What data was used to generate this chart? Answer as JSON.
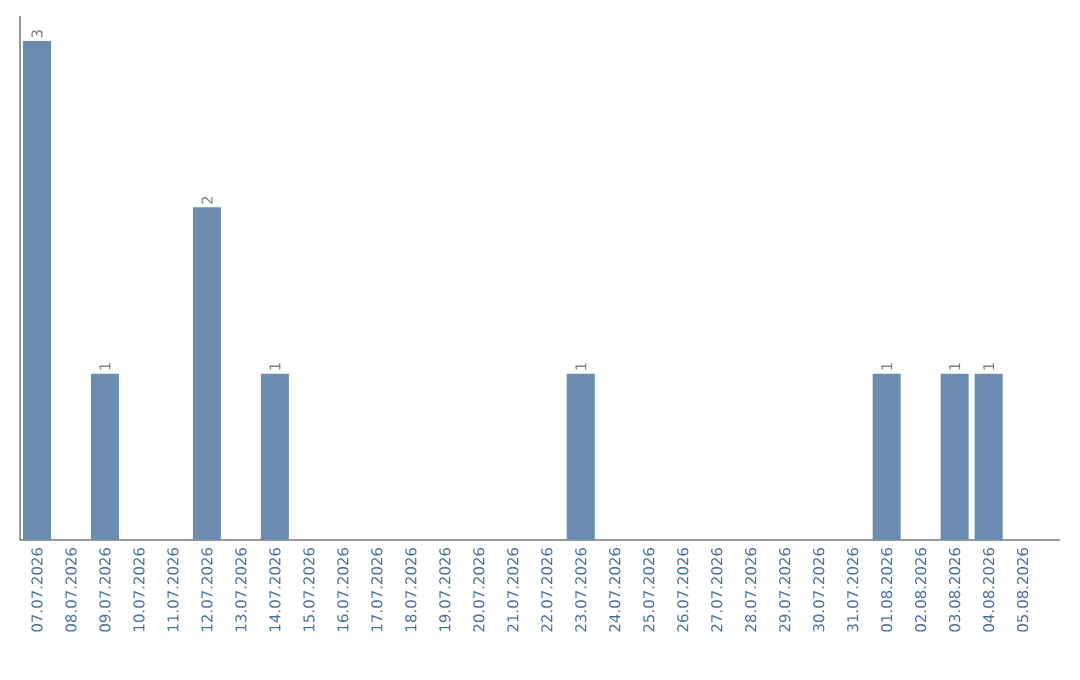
{
  "chart_data": {
    "type": "bar",
    "categories": [
      "07.07.2026",
      "08.07.2026",
      "09.07.2026",
      "10.07.2026",
      "11.07.2026",
      "12.07.2026",
      "13.07.2026",
      "14.07.2026",
      "15.07.2026",
      "16.07.2026",
      "17.07.2026",
      "18.07.2026",
      "19.07.2026",
      "20.07.2026",
      "21.07.2026",
      "22.07.2026",
      "23.07.2026",
      "24.07.2026",
      "25.07.2026",
      "26.07.2026",
      "27.07.2026",
      "28.07.2026",
      "29.07.2026",
      "30.07.2026",
      "31.07.2026",
      "01.08.2026",
      "02.08.2026",
      "03.08.2026",
      "04.08.2026",
      "05.08.2026"
    ],
    "values": [
      3,
      0,
      1,
      0,
      0,
      2,
      0,
      1,
      0,
      0,
      0,
      0,
      0,
      0,
      0,
      0,
      1,
      0,
      0,
      0,
      0,
      0,
      0,
      0,
      0,
      1,
      0,
      1,
      1,
      0
    ],
    "value_labels": [
      "3",
      null,
      "1",
      null,
      null,
      "2",
      null,
      "1",
      null,
      null,
      null,
      null,
      null,
      null,
      null,
      null,
      "1",
      null,
      null,
      null,
      null,
      null,
      null,
      null,
      null,
      "1",
      null,
      "1",
      "1",
      null
    ],
    "color": "#6b8cae",
    "ylim": [
      0,
      3.15
    ],
    "tick_labels": "x",
    "grid": false
  }
}
